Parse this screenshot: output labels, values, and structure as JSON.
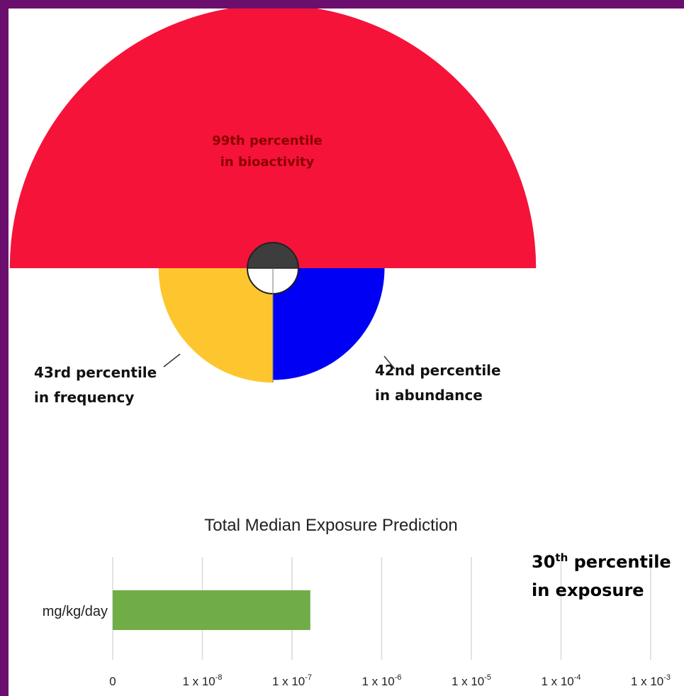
{
  "colors": {
    "border": "#6b0f6f",
    "bioactivity": "#f5133a",
    "frequency": "#fec62e",
    "abundance": "#0000f5",
    "center_top": "#3d3d3d",
    "bar": "#70ad47"
  },
  "chart_data": [
    {
      "type": "pie",
      "subtype": "polar-area",
      "slices": [
        {
          "name": "bioactivity",
          "percentile": 99,
          "label_line1": "99th percentile",
          "label_line2": "in bioactivity",
          "angle_deg": 180,
          "position": "top"
        },
        {
          "name": "frequency",
          "percentile": 43,
          "label_line1": "43rd percentile",
          "label_line2": "in frequency",
          "angle_deg": 90,
          "position": "bottom-left"
        },
        {
          "name": "abundance",
          "percentile": 42,
          "label_line1": "42nd percentile",
          "label_line2": "in abundance",
          "angle_deg": 90,
          "position": "bottom-right"
        }
      ]
    },
    {
      "type": "bar",
      "orientation": "horizontal",
      "title": "Total Median Exposure Prediction",
      "categories": [
        "mg/kg/day"
      ],
      "values": [
        1.6e-07
      ],
      "x_scale": "log",
      "x_ticks": [
        {
          "value": 0,
          "base": "0",
          "exp": ""
        },
        {
          "value": 1e-08,
          "base": "1 x 10",
          "exp": "-8"
        },
        {
          "value": 1e-07,
          "base": "1 x 10",
          "exp": "-7"
        },
        {
          "value": 1e-06,
          "base": "1 x 10",
          "exp": "-6"
        },
        {
          "value": 1e-05,
          "base": "1 x 10",
          "exp": "-5"
        },
        {
          "value": 0.0001,
          "base": "1 x 10",
          "exp": "-4"
        },
        {
          "value": 0.001,
          "base": "1 x 10",
          "exp": "-3"
        }
      ],
      "grid": true,
      "annotation": {
        "number": "30",
        "sup": "th",
        "rest": " percentile",
        "line2": "in exposure"
      }
    }
  ]
}
